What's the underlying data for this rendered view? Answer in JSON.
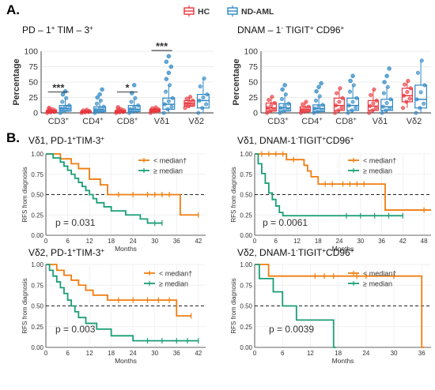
{
  "figure": {
    "panel_a_label": "A.",
    "panel_b_label": "B.",
    "legend_hc": "HC",
    "legend_nd": "ND-AML",
    "box_titles": [
      {
        "base": "PD – 1",
        "sup1": "+",
        "mid": " TIM – 3",
        "sup2": "+"
      },
      {
        "base": "DNAM – 1",
        "sup1": "-",
        "mid": " TIGIT",
        "sup2": "+",
        "tail": " CD96",
        "sup3": "+"
      }
    ]
  },
  "chart_data": [
    {
      "type": "box",
      "title": "PD-1+ TIM-3+",
      "ylabel": "Percentage",
      "ylim": [
        0,
        100
      ],
      "yticks": [
        0,
        25,
        50,
        75,
        100
      ],
      "categories": [
        "CD3+",
        "CD4+",
        "CD8+",
        "Vδ1",
        "Vδ2"
      ],
      "category_labels": [
        {
          "base": "CD3",
          "sup": "+"
        },
        {
          "base": "CD4",
          "sup": "+"
        },
        {
          "base": "CD8",
          "sup": "+"
        },
        {
          "base": "Vδ1",
          "sup": ""
        },
        {
          "base": "Vδ2",
          "sup": ""
        }
      ],
      "series": [
        {
          "name": "HC",
          "color": "#e8363d",
          "boxes": [
            {
              "min": 0,
              "q1": 1,
              "median": 2,
              "q3": 4,
              "max": 6,
              "outliers": [
                8
              ]
            },
            {
              "min": 0,
              "q1": 1,
              "median": 2,
              "q3": 3,
              "max": 5,
              "outliers": []
            },
            {
              "min": 0,
              "q1": 1,
              "median": 2,
              "q3": 4,
              "max": 6,
              "outliers": [
                9
              ]
            },
            {
              "min": 0,
              "q1": 2,
              "median": 4,
              "q3": 6,
              "max": 9,
              "outliers": []
            },
            {
              "min": 8,
              "q1": 11,
              "median": 15,
              "q3": 20,
              "max": 26,
              "outliers": []
            }
          ]
        },
        {
          "name": "ND-AML",
          "color": "#2f88c4",
          "boxes": [
            {
              "min": 0,
              "q1": 3,
              "median": 7,
              "q3": 12,
              "max": 24,
              "outliers": [
                30,
                35
              ]
            },
            {
              "min": 0,
              "q1": 2,
              "median": 5,
              "q3": 10,
              "max": 20,
              "outliers": [
                25,
                30,
                38
              ]
            },
            {
              "min": 0,
              "q1": 2,
              "median": 6,
              "q3": 12,
              "max": 24,
              "outliers": [
                32,
                45
              ]
            },
            {
              "min": 0,
              "q1": 6,
              "median": 14,
              "q3": 24,
              "max": 45,
              "outliers": [
                55,
                65,
                75,
                83,
                92
              ]
            },
            {
              "min": 0,
              "q1": 8,
              "median": 20,
              "q3": 30,
              "max": 56,
              "outliers": []
            }
          ]
        }
      ],
      "significance": [
        {
          "category": "CD3+",
          "label": "***"
        },
        {
          "category": "CD8+",
          "label": "*"
        },
        {
          "category": "Vδ1",
          "label": "***"
        }
      ]
    },
    {
      "type": "box",
      "title": "DNAM-1- TIGIT+ CD96+",
      "ylabel": "Percentage",
      "ylim": [
        0,
        100
      ],
      "yticks": [
        0,
        25,
        50,
        75,
        100
      ],
      "categories": [
        "CD3+",
        "CD4+",
        "CD8+",
        "Vδ1",
        "Vδ2"
      ],
      "category_labels": [
        {
          "base": "CD3",
          "sup": "+"
        },
        {
          "base": "CD4",
          "sup": "+"
        },
        {
          "base": "CD8",
          "sup": "+"
        },
        {
          "base": "Vδ1",
          "sup": ""
        },
        {
          "base": "Vδ2",
          "sup": ""
        }
      ],
      "series": [
        {
          "name": "HC",
          "color": "#e8363d",
          "boxes": [
            {
              "min": 0,
              "q1": 3,
              "median": 8,
              "q3": 16,
              "max": 26,
              "outliers": []
            },
            {
              "min": 0,
              "q1": 2,
              "median": 5,
              "q3": 10,
              "max": 18,
              "outliers": []
            },
            {
              "min": 0,
              "q1": 4,
              "median": 12,
              "q3": 24,
              "max": 40,
              "outliers": []
            },
            {
              "min": 0,
              "q1": 4,
              "median": 11,
              "q3": 20,
              "max": 38,
              "outliers": []
            },
            {
              "min": 8,
              "q1": 18,
              "median": 28,
              "q3": 40,
              "max": 52,
              "outliers": []
            }
          ]
        },
        {
          "name": "ND-AML",
          "color": "#2f88c4",
          "boxes": [
            {
              "min": 0,
              "q1": 3,
              "median": 8,
              "q3": 15,
              "max": 30,
              "outliers": [
                38,
                45
              ]
            },
            {
              "min": 0,
              "q1": 2,
              "median": 7,
              "q3": 13,
              "max": 27,
              "outliers": [
                35,
                42,
                48
              ]
            },
            {
              "min": 0,
              "q1": 4,
              "median": 12,
              "q3": 24,
              "max": 45,
              "outliers": [
                52,
                60
              ]
            },
            {
              "min": 0,
              "q1": 4,
              "median": 10,
              "q3": 22,
              "max": 42,
              "outliers": [
                50,
                60,
                72
              ]
            },
            {
              "min": 0,
              "q1": 8,
              "median": 22,
              "q3": 45,
              "max": 85,
              "outliers": []
            }
          ]
        }
      ],
      "significance": []
    },
    {
      "type": "line",
      "subtype": "kaplan-meier",
      "title": {
        "parts": [
          {
            "t": "Vδ1, PD-1"
          },
          {
            "t": "+",
            "sup": true
          },
          {
            "t": "TIM-3"
          },
          {
            "t": "+",
            "sup": true
          }
        ]
      },
      "xlabel": "Months",
      "ylabel": "RFS from diagnosis",
      "xlim": [
        0,
        44
      ],
      "xticks": [
        0,
        6,
        12,
        18,
        24,
        30,
        36,
        42
      ],
      "ylim": [
        0,
        1
      ],
      "yticks": [
        "0.00",
        "0.25",
        "0.50",
        "0.75",
        "1.00"
      ],
      "reference_line": 0.5,
      "pvalue": "p = 0.031",
      "series": [
        {
          "name": "< median†",
          "color": "#f07d0f",
          "steps": [
            [
              0,
              1.0
            ],
            [
              4,
              0.94
            ],
            [
              7,
              0.88
            ],
            [
              9,
              0.82
            ],
            [
              12,
              0.69
            ],
            [
              15,
              0.62
            ],
            [
              17,
              0.5
            ],
            [
              37,
              0.25
            ],
            [
              42,
              0.25
            ]
          ],
          "censor": [
            [
              20,
              0.5
            ],
            [
              24,
              0.5
            ],
            [
              28,
              0.5
            ],
            [
              30,
              0.5
            ],
            [
              32,
              0.5
            ],
            [
              34,
              0.5
            ],
            [
              42,
              0.25
            ]
          ]
        },
        {
          "name": "≥ median",
          "color": "#1a9e77",
          "steps": [
            [
              0,
              1.0
            ],
            [
              2,
              0.95
            ],
            [
              4,
              0.9
            ],
            [
              5,
              0.85
            ],
            [
              6,
              0.8
            ],
            [
              7,
              0.75
            ],
            [
              8,
              0.7
            ],
            [
              9,
              0.65
            ],
            [
              10,
              0.6
            ],
            [
              11,
              0.55
            ],
            [
              12,
              0.5
            ],
            [
              13,
              0.45
            ],
            [
              14,
              0.4
            ],
            [
              16,
              0.35
            ],
            [
              18,
              0.3
            ],
            [
              22,
              0.25
            ],
            [
              26,
              0.2
            ],
            [
              28,
              0.15
            ],
            [
              32,
              0.15
            ]
          ],
          "censor": [
            [
              30,
              0.15
            ],
            [
              32,
              0.15
            ]
          ]
        }
      ]
    },
    {
      "type": "line",
      "subtype": "kaplan-meier",
      "title": {
        "parts": [
          {
            "t": "Vδ1, DNAM-1"
          },
          {
            "t": "-",
            "sup": true
          },
          {
            "t": "TIGIT"
          },
          {
            "t": "+",
            "sup": true
          },
          {
            "t": "CD96"
          },
          {
            "t": "+",
            "sup": true
          }
        ]
      },
      "xlabel": "Months",
      "ylabel": "RFS from diagnosis",
      "xlim": [
        0,
        50
      ],
      "xticks": [
        0,
        6,
        12,
        18,
        24,
        30,
        36,
        42,
        48
      ],
      "ylim": [
        0,
        1
      ],
      "yticks": [
        "0.00",
        "0.25",
        "0.50",
        "0.75",
        "1.00"
      ],
      "reference_line": 0.5,
      "pvalue": "p = 0.0061",
      "series": [
        {
          "name": "< median†",
          "color": "#f07d0f",
          "steps": [
            [
              0,
              1.0
            ],
            [
              9,
              0.93
            ],
            [
              14,
              0.86
            ],
            [
              15,
              0.79
            ],
            [
              16,
              0.72
            ],
            [
              18,
              0.63
            ],
            [
              37,
              0.31
            ],
            [
              50,
              0.31
            ]
          ],
          "censor": [
            [
              2,
              1.0
            ],
            [
              4,
              1.0
            ],
            [
              6,
              1.0
            ],
            [
              8,
              1.0
            ],
            [
              11,
              0.93
            ],
            [
              20,
              0.63
            ],
            [
              22,
              0.63
            ],
            [
              25,
              0.63
            ],
            [
              27,
              0.63
            ],
            [
              29,
              0.63
            ],
            [
              31,
              0.63
            ],
            [
              48,
              0.31
            ]
          ]
        },
        {
          "name": "≥ median",
          "color": "#1a9e77",
          "steps": [
            [
              0,
              1.0
            ],
            [
              1,
              0.88
            ],
            [
              2,
              0.76
            ],
            [
              3,
              0.64
            ],
            [
              4,
              0.52
            ],
            [
              5,
              0.44
            ],
            [
              6,
              0.36
            ],
            [
              7,
              0.28
            ],
            [
              8,
              0.24
            ],
            [
              37,
              0.24
            ],
            [
              42,
              0.24
            ]
          ],
          "censor": [
            [
              26,
              0.24
            ],
            [
              30,
              0.24
            ],
            [
              34,
              0.24
            ],
            [
              38,
              0.24
            ],
            [
              42,
              0.24
            ]
          ]
        }
      ]
    },
    {
      "type": "line",
      "subtype": "kaplan-meier",
      "title": {
        "parts": [
          {
            "t": "Vδ2, PD-1"
          },
          {
            "t": "+",
            "sup": true
          },
          {
            "t": "TIM-3"
          },
          {
            "t": "+",
            "sup": true
          }
        ]
      },
      "xlabel": "Months",
      "ylabel": "RFS from diagnosis",
      "xlim": [
        0,
        44
      ],
      "xticks": [
        0,
        6,
        12,
        18,
        24,
        30,
        36,
        42
      ],
      "ylim": [
        0,
        1
      ],
      "yticks": [
        "0.00",
        "0.25",
        "0.50",
        "0.75",
        "1.00"
      ],
      "reference_line": 0.5,
      "pvalue": "p = 0.003",
      "series": [
        {
          "name": "< median†",
          "color": "#f07d0f",
          "steps": [
            [
              0,
              1.0
            ],
            [
              3,
              0.93
            ],
            [
              5,
              0.87
            ],
            [
              7,
              0.81
            ],
            [
              9,
              0.75
            ],
            [
              11,
              0.69
            ],
            [
              13,
              0.63
            ],
            [
              17,
              0.57
            ],
            [
              36,
              0.38
            ],
            [
              40,
              0.38
            ]
          ],
          "censor": [
            [
              20,
              0.57
            ],
            [
              24,
              0.57
            ],
            [
              28,
              0.57
            ],
            [
              31,
              0.57
            ],
            [
              34,
              0.57
            ],
            [
              40,
              0.38
            ]
          ]
        },
        {
          "name": "≥ median",
          "color": "#1a9e77",
          "steps": [
            [
              0,
              1.0
            ],
            [
              1,
              0.93
            ],
            [
              2,
              0.86
            ],
            [
              3,
              0.79
            ],
            [
              4,
              0.72
            ],
            [
              5,
              0.65
            ],
            [
              6,
              0.57
            ],
            [
              7,
              0.5
            ],
            [
              8,
              0.43
            ],
            [
              9,
              0.36
            ],
            [
              11,
              0.29
            ],
            [
              14,
              0.22
            ],
            [
              18,
              0.14
            ],
            [
              24,
              0.08
            ],
            [
              42,
              0.08
            ]
          ],
          "censor": [
            [
              28,
              0.08
            ],
            [
              32,
              0.08
            ],
            [
              36,
              0.08
            ],
            [
              39,
              0.08
            ],
            [
              42,
              0.08
            ]
          ]
        }
      ]
    },
    {
      "type": "line",
      "subtype": "kaplan-meier",
      "title": {
        "parts": [
          {
            "t": "Vδ2, DNAM-1"
          },
          {
            "t": "-",
            "sup": true
          },
          {
            "t": "TIGIT"
          },
          {
            "t": "+",
            "sup": true
          },
          {
            "t": "CD96"
          },
          {
            "t": "+",
            "sup": true
          }
        ]
      },
      "xlabel": "Months",
      "ylabel": "RFS from diagnosis",
      "xlim": [
        0,
        38
      ],
      "xticks": [
        0,
        6,
        12,
        18,
        24,
        30,
        36
      ],
      "ylim": [
        0,
        1
      ],
      "yticks": [
        "0.00",
        "0.25",
        "0.50",
        "0.75",
        "1.00"
      ],
      "reference_line": 0.5,
      "pvalue": "p = 0.0039",
      "series": [
        {
          "name": "< median†",
          "color": "#f07d0f",
          "steps": [
            [
              0,
              1.0
            ],
            [
              3,
              0.86
            ],
            [
              36,
              0.0
            ],
            [
              36.5,
              0.0
            ]
          ],
          "censor": [
            [
              13,
              0.86
            ],
            [
              15,
              0.86
            ],
            [
              17,
              0.86
            ],
            [
              22,
              0.86
            ],
            [
              24,
              0.86
            ],
            [
              30,
              0.86
            ]
          ]
        },
        {
          "name": "≥ median",
          "color": "#1a9e77",
          "steps": [
            [
              0,
              1.0
            ],
            [
              1,
              0.83
            ],
            [
              4,
              0.67
            ],
            [
              6,
              0.5
            ],
            [
              9,
              0.33
            ],
            [
              17,
              0.0
            ],
            [
              17.5,
              0.0
            ]
          ],
          "censor": []
        }
      ]
    }
  ]
}
